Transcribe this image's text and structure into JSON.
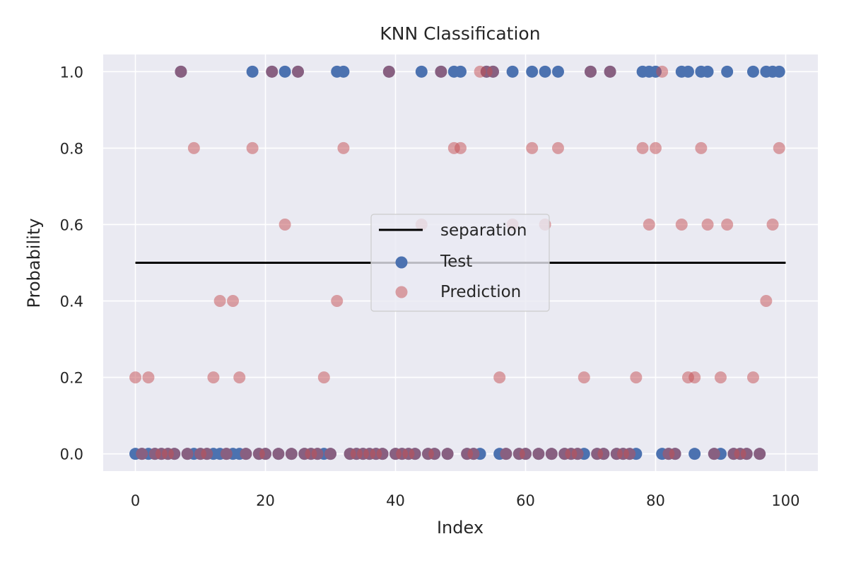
{
  "chart_data": {
    "type": "scatter",
    "title": "KNN Classification",
    "xlabel": "Index",
    "ylabel": "Probability",
    "xlim": [
      -4.95,
      104.95
    ],
    "ylim": [
      -0.045,
      1.045
    ],
    "xticks": [
      0,
      20,
      40,
      60,
      80,
      100
    ],
    "xtick_labels": [
      "0",
      "20",
      "40",
      "60",
      "80",
      "100"
    ],
    "yticks": [
      0.0,
      0.2,
      0.4,
      0.6,
      0.8,
      1.0
    ],
    "ytick_labels": [
      "0.0",
      "0.2",
      "0.4",
      "0.6",
      "0.8",
      "1.0"
    ],
    "grid": true,
    "legend_position": "center",
    "colors": {
      "background": "#eaeaf2",
      "grid": "#ffffff",
      "test": "#4c72b0",
      "prediction": "#c44e52",
      "separation": "#000000"
    },
    "separation": {
      "name": "separation",
      "x": [
        0,
        100
      ],
      "y": [
        0.5,
        0.5
      ]
    },
    "series": [
      {
        "name": "Test",
        "x": [
          0,
          1,
          2,
          3,
          4,
          5,
          6,
          7,
          8,
          9,
          10,
          11,
          12,
          13,
          14,
          15,
          16,
          17,
          18,
          19,
          20,
          21,
          22,
          23,
          24,
          25,
          26,
          27,
          28,
          29,
          30,
          31,
          32,
          33,
          34,
          35,
          36,
          37,
          38,
          39,
          40,
          41,
          42,
          43,
          44,
          45,
          46,
          47,
          48,
          49,
          50,
          51,
          52,
          53,
          54,
          55,
          56,
          57,
          58,
          59,
          60,
          61,
          62,
          63,
          64,
          65,
          66,
          67,
          68,
          69,
          70,
          71,
          72,
          73,
          74,
          75,
          76,
          77,
          78,
          79,
          80,
          81,
          82,
          83,
          84,
          85,
          86,
          87,
          88,
          89,
          90,
          91,
          92,
          93,
          94,
          95,
          96,
          97,
          98,
          99
        ],
        "y": [
          0,
          0,
          0,
          0,
          0,
          0,
          0,
          1,
          0,
          0,
          0,
          0,
          0,
          0,
          0,
          0,
          0,
          0,
          1,
          0,
          0,
          1,
          0,
          1,
          0,
          1,
          0,
          0,
          0,
          0,
          0,
          1,
          1,
          0,
          0,
          0,
          0,
          0,
          0,
          1,
          0,
          0,
          0,
          0,
          1,
          0,
          0,
          1,
          0,
          1,
          1,
          0,
          0,
          0,
          1,
          1,
          0,
          0,
          1,
          0,
          0,
          1,
          0,
          1,
          0,
          1,
          0,
          0,
          0,
          0,
          1,
          0,
          0,
          1,
          0,
          0,
          0,
          0,
          1,
          1,
          1,
          0,
          0,
          0,
          1,
          1,
          0,
          1,
          1,
          0,
          0,
          1,
          0,
          0,
          0,
          1,
          0,
          1,
          1,
          1
        ]
      },
      {
        "name": "Prediction",
        "x": [
          0,
          1,
          2,
          3,
          4,
          5,
          6,
          7,
          8,
          9,
          10,
          11,
          12,
          13,
          14,
          15,
          16,
          17,
          18,
          19,
          20,
          21,
          22,
          23,
          24,
          25,
          26,
          27,
          28,
          29,
          30,
          31,
          32,
          33,
          34,
          35,
          36,
          37,
          38,
          39,
          40,
          41,
          42,
          43,
          44,
          45,
          46,
          47,
          48,
          49,
          50,
          51,
          52,
          53,
          54,
          55,
          56,
          57,
          58,
          59,
          60,
          61,
          62,
          63,
          64,
          65,
          66,
          67,
          68,
          69,
          70,
          71,
          72,
          73,
          74,
          75,
          76,
          77,
          78,
          79,
          80,
          81,
          82,
          83,
          84,
          85,
          86,
          87,
          88,
          89,
          90,
          91,
          92,
          93,
          94,
          95,
          96,
          97,
          98,
          99
        ],
        "y": [
          0.2,
          0,
          0.2,
          0,
          0,
          0,
          0,
          1,
          0,
          0.8,
          0,
          0,
          0.2,
          0.4,
          0,
          0.4,
          0.2,
          0,
          0.8,
          0,
          0,
          1,
          0,
          0.6,
          0,
          1,
          0,
          0,
          0,
          0.2,
          0,
          0.4,
          0.8,
          0,
          0,
          0,
          0,
          0,
          0,
          1,
          0,
          0,
          0,
          0,
          0.6,
          0,
          0,
          1,
          0,
          0.8,
          0.8,
          0,
          0,
          1,
          1,
          1,
          0.2,
          0,
          0.6,
          0,
          0,
          0.8,
          0,
          0.6,
          0,
          0.8,
          0,
          0,
          0,
          0.2,
          1,
          0,
          0,
          1,
          0,
          0,
          0,
          0.2,
          0.8,
          0.6,
          0.8,
          1,
          0,
          0,
          0.6,
          0.2,
          0.2,
          0.8,
          0.6,
          0,
          0.2,
          0.6,
          0,
          0,
          0,
          0.2,
          0,
          0.4,
          0.6,
          0.8
        ]
      }
    ]
  }
}
